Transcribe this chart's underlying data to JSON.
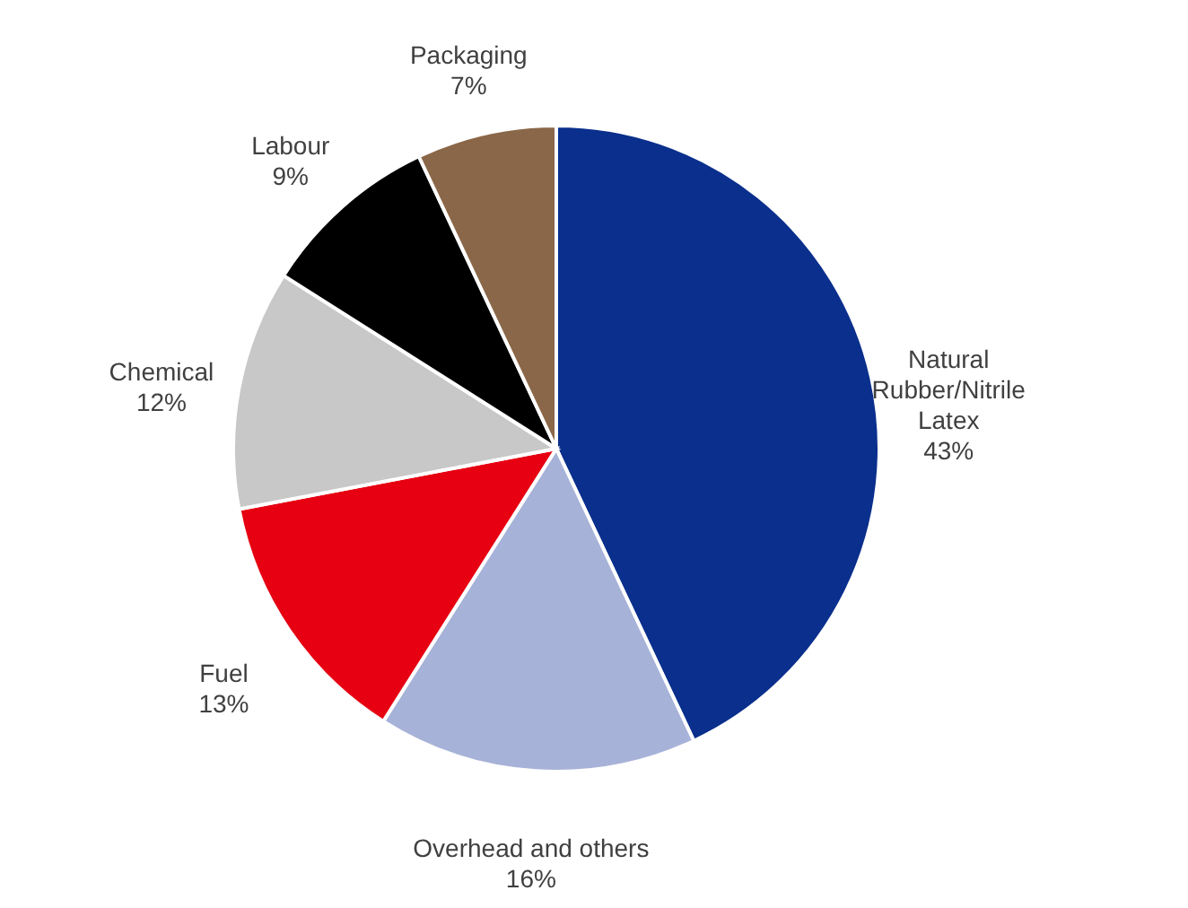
{
  "chart_data": {
    "type": "pie",
    "categories": [
      "Natural Rubber/Nitrile Latex",
      "Overhead and others",
      "Fuel",
      "Chemical",
      "Labour",
      "Packaging"
    ],
    "values": [
      43,
      16,
      13,
      12,
      9,
      7
    ],
    "value_labels": [
      "43%",
      "16%",
      "13%",
      "12%",
      "9%",
      "7%"
    ],
    "colors": [
      "#0a2f8c",
      "#a7b2d8",
      "#e60012",
      "#c8c8c8",
      "#000000",
      "#8a6748"
    ]
  }
}
